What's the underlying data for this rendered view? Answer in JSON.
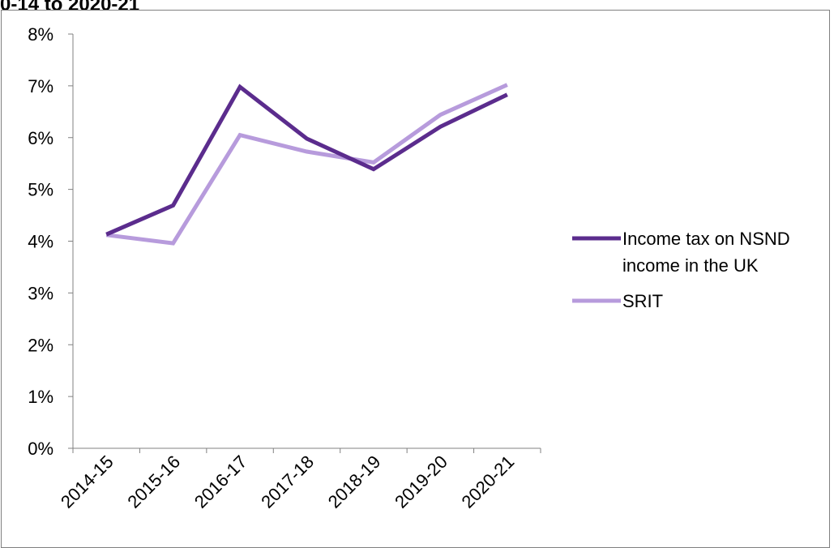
{
  "page_title": "0-14 to 2020-21",
  "chart_data": {
    "type": "line",
    "title": "0-14 to 2020-21",
    "xlabel": "",
    "ylabel": "",
    "categories": [
      "2014-15",
      "2015-16",
      "2016-17",
      "2017-18",
      "2018-19",
      "2019-20",
      "2020-21"
    ],
    "yticks": [
      "0%",
      "1%",
      "2%",
      "3%",
      "4%",
      "5%",
      "6%",
      "7%",
      "8%"
    ],
    "ylim": [
      0,
      8
    ],
    "grid": false,
    "legend_position": "right",
    "series": [
      {
        "name": "Income tax on NSND income in the UK",
        "name_lines": [
          "Income tax on NSND",
          "income in the UK"
        ],
        "color": "#5b2c8d",
        "values": [
          4.13,
          4.69,
          6.98,
          5.98,
          5.39,
          6.21,
          6.83
        ]
      },
      {
        "name": "SRIT",
        "name_lines": [
          "SRIT"
        ],
        "color": "#b79bdc",
        "values": [
          4.12,
          3.96,
          6.05,
          5.73,
          5.52,
          6.44,
          7.02
        ]
      }
    ]
  }
}
